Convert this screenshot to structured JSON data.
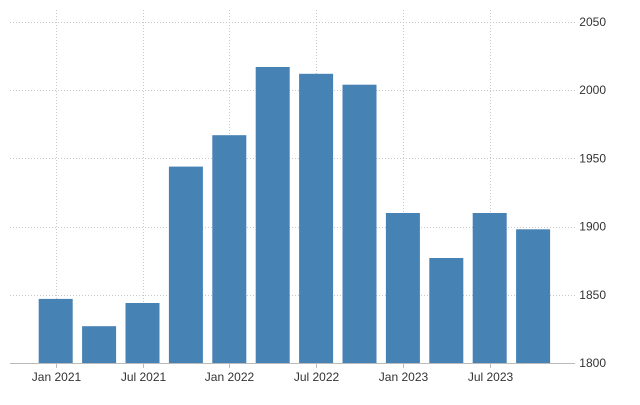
{
  "chart_data": {
    "type": "bar",
    "categories": [
      "Jan 2021",
      "Apr 2021",
      "Jul 2021",
      "Oct 2021",
      "Jan 2022",
      "Apr 2022",
      "Jul 2022",
      "Oct 2022",
      "Jan 2023",
      "Apr 2023",
      "Jul 2023",
      "Oct 2023"
    ],
    "values": [
      1847,
      1827,
      1844,
      1944,
      1967,
      2017,
      2012,
      2004,
      1910,
      1877,
      1910,
      1898
    ],
    "x_tick_labels": [
      {
        "label": "Jan 2021",
        "index": 0
      },
      {
        "label": "Jul 2021",
        "index": 2
      },
      {
        "label": "Jan 2022",
        "index": 4
      },
      {
        "label": "Jul 2022",
        "index": 6
      },
      {
        "label": "Jan 2023",
        "index": 8
      },
      {
        "label": "Jul 2023",
        "index": 10
      }
    ],
    "y_ticks": [
      1800,
      1850,
      1900,
      1950,
      2000,
      2050
    ],
    "ylim": [
      1800,
      2050
    ],
    "y_axis_side": "right",
    "grid": true,
    "legend": "none",
    "title": "",
    "xlabel": "",
    "ylabel": "",
    "colors": {
      "bar": "#4682b4",
      "grid": "#c8c8c8",
      "axis": "#333333"
    }
  }
}
